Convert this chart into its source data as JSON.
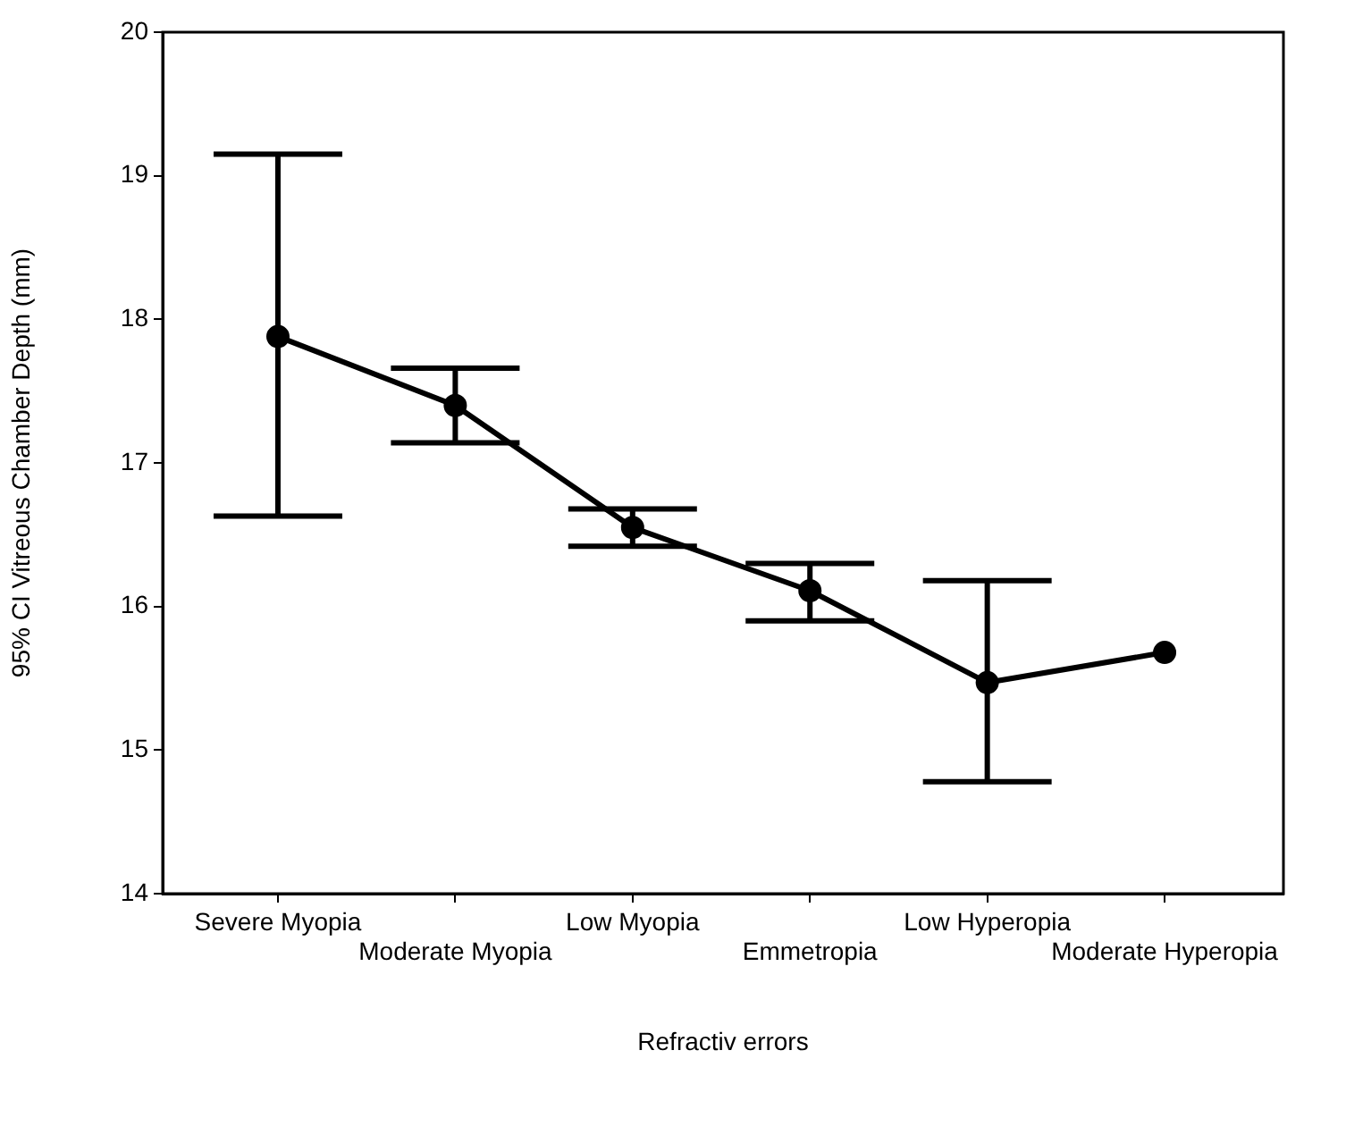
{
  "chart_data": {
    "type": "line",
    "xlabel": "Refractiv errors",
    "ylabel": "95% CI Vitreous Chamber Depth (mm)",
    "categories": [
      "Severe Myopia",
      "Moderate Myopia",
      "Low Myopia",
      "Emmetropia",
      "Low Hyperopia",
      "Moderate Hyperopia"
    ],
    "series": [
      {
        "color": "#000000",
        "values": [
          17.88,
          17.4,
          16.55,
          16.11,
          15.47,
          15.68
        ],
        "errors": [
          [
            16.63,
            19.15
          ],
          [
            17.14,
            17.66
          ],
          [
            16.42,
            16.68
          ],
          [
            15.9,
            16.3
          ],
          [
            14.78,
            16.18
          ],
          null
        ]
      }
    ],
    "ylim": [
      14,
      20
    ],
    "yticks": [
      14,
      15,
      16,
      17,
      18,
      19,
      20
    ],
    "grid": false,
    "legend": false,
    "marker": "circle",
    "line_style": "solid"
  }
}
